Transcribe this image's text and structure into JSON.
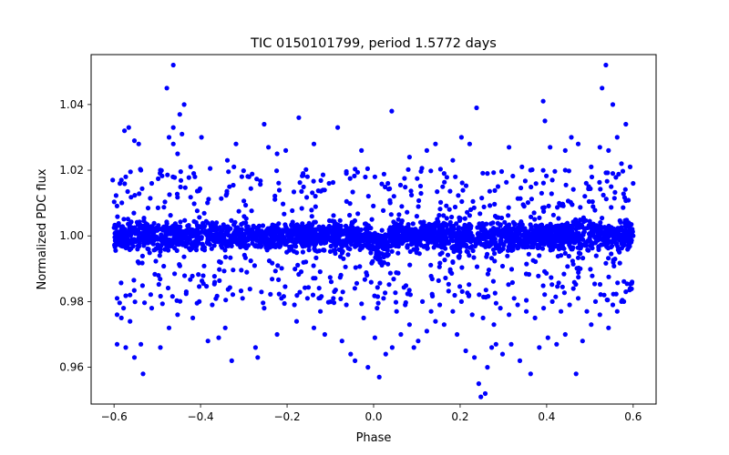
{
  "chart_data": {
    "type": "scatter",
    "title": "TIC 0150101799, period 1.5772 days",
    "xlabel": "Phase",
    "ylabel": "Normalized PDC flux",
    "xlim": [
      -0.653,
      0.653
    ],
    "ylim": [
      0.9488,
      1.0552
    ],
    "xticks": [
      -0.6,
      -0.4,
      -0.2,
      0.0,
      0.2,
      0.4,
      0.6
    ],
    "xtick_labels": [
      "−0.6",
      "−0.4",
      "−0.2",
      "0.0",
      "0.2",
      "0.4",
      "0.6"
    ],
    "yticks": [
      0.96,
      0.98,
      1.0,
      1.02,
      1.04
    ],
    "ytick_labels": [
      "0.96",
      "0.98",
      "1.00",
      "1.02",
      "1.04"
    ],
    "grid": false,
    "marker_color": "#0000ff",
    "series": [
      {
        "name": "PDC flux",
        "points": [
          [
            -0.463,
            1.052
          ],
          [
            0.537,
            1.052
          ],
          [
            -0.478,
            1.045
          ],
          [
            0.528,
            1.045
          ],
          [
            -0.438,
            1.04
          ],
          [
            0.392,
            1.041
          ],
          [
            0.553,
            1.04
          ],
          [
            -0.448,
            1.037
          ],
          [
            0.042,
            1.038
          ],
          [
            0.238,
            1.039
          ],
          [
            -0.576,
            1.032
          ],
          [
            -0.566,
            1.033
          ],
          [
            -0.463,
            1.033
          ],
          [
            -0.253,
            1.034
          ],
          [
            -0.173,
            1.036
          ],
          [
            -0.443,
            1.031
          ],
          [
            0.563,
            1.03
          ],
          [
            0.396,
            1.035
          ],
          [
            -0.553,
            1.029
          ],
          [
            -0.543,
            1.028
          ],
          [
            -0.473,
            1.03
          ],
          [
            -0.398,
            1.03
          ],
          [
            -0.083,
            1.033
          ],
          [
            0.457,
            1.03
          ],
          [
            0.473,
            1.028
          ],
          [
            0.583,
            1.034
          ],
          [
            -0.318,
            1.028
          ],
          [
            -0.243,
            1.027
          ],
          [
            -0.138,
            1.028
          ],
          [
            0.123,
            1.026
          ],
          [
            0.203,
            1.03
          ],
          [
            0.523,
            1.027
          ],
          [
            -0.453,
            1.025
          ],
          [
            -0.463,
            1.028
          ],
          [
            0.408,
            1.027
          ],
          [
            0.543,
            1.026
          ],
          [
            -0.538,
            1.02
          ],
          [
            -0.493,
            1.02
          ],
          [
            -0.423,
            1.021
          ],
          [
            -0.338,
            1.023
          ],
          [
            -0.223,
            1.025
          ],
          [
            -0.203,
            1.026
          ],
          [
            -0.028,
            1.026
          ],
          [
            0.143,
            1.028
          ],
          [
            0.222,
            1.028
          ],
          [
            0.313,
            1.027
          ],
          [
            0.443,
            1.026
          ],
          [
            0.573,
            1.022
          ],
          [
            0.503,
            1.021
          ],
          [
            0.553,
            1.019
          ],
          [
            0.083,
            1.024
          ],
          [
            -0.163,
            1.019
          ],
          [
            -0.323,
            1.021
          ],
          [
            -0.573,
            1.018
          ],
          [
            -0.583,
            1.017
          ],
          [
            0.363,
            1.02
          ],
          [
            0.443,
            1.02
          ],
          [
            0.593,
            1.021
          ],
          [
            -0.063,
            1.019
          ],
          [
            0.003,
            1.018
          ],
          [
            -0.603,
            1.017
          ],
          [
            0.6,
            1.016
          ],
          [
            0.343,
            1.021
          ],
          [
            0.183,
            1.023
          ],
          [
            0.163,
            1.019
          ],
          [
            -0.288,
            1.018
          ],
          [
            -0.413,
            1.018
          ],
          [
            -0.513,
            1.016
          ],
          [
            0.263,
            1.019
          ],
          [
            0.033,
            1.016
          ],
          [
            -0.103,
            1.016
          ],
          [
            0.413,
            1.017
          ],
          [
            -0.593,
            0.976
          ],
          [
            -0.583,
            0.975
          ],
          [
            -0.578,
            0.978
          ],
          [
            -0.563,
            0.974
          ],
          [
            -0.593,
            0.967
          ],
          [
            -0.573,
            0.966
          ],
          [
            -0.553,
            0.963
          ],
          [
            -0.538,
            0.967
          ],
          [
            -0.533,
            0.958
          ],
          [
            -0.493,
            0.966
          ],
          [
            -0.473,
            0.972
          ],
          [
            -0.453,
            0.976
          ],
          [
            -0.418,
            0.975
          ],
          [
            -0.383,
            0.968
          ],
          [
            -0.358,
            0.969
          ],
          [
            -0.343,
            0.972
          ],
          [
            -0.328,
            0.962
          ],
          [
            -0.273,
            0.966
          ],
          [
            -0.268,
            0.963
          ],
          [
            -0.223,
            0.97
          ],
          [
            -0.178,
            0.974
          ],
          [
            -0.138,
            0.972
          ],
          [
            -0.113,
            0.97
          ],
          [
            -0.073,
            0.968
          ],
          [
            -0.053,
            0.964
          ],
          [
            -0.043,
            0.962
          ],
          [
            -0.013,
            0.96
          ],
          [
            0.013,
            0.957
          ],
          [
            0.003,
            0.969
          ],
          [
            0.028,
            0.964
          ],
          [
            0.043,
            0.966
          ],
          [
            0.063,
            0.97
          ],
          [
            0.083,
            0.973
          ],
          [
            0.093,
            0.966
          ],
          [
            0.103,
            0.968
          ],
          [
            0.123,
            0.971
          ],
          [
            0.143,
            0.974
          ],
          [
            0.163,
            0.973
          ],
          [
            0.193,
            0.97
          ],
          [
            0.213,
            0.965
          ],
          [
            0.233,
            0.963
          ],
          [
            0.243,
            0.955
          ],
          [
            0.248,
            0.951
          ],
          [
            0.258,
            0.952
          ],
          [
            0.263,
            0.96
          ],
          [
            0.273,
            0.966
          ],
          [
            0.283,
            0.967
          ],
          [
            0.298,
            0.964
          ],
          [
            0.318,
            0.967
          ],
          [
            0.338,
            0.962
          ],
          [
            0.363,
            0.958
          ],
          [
            0.383,
            0.966
          ],
          [
            0.403,
            0.969
          ],
          [
            0.423,
            0.967
          ],
          [
            0.443,
            0.97
          ],
          [
            0.468,
            0.958
          ],
          [
            0.483,
            0.968
          ],
          [
            0.503,
            0.973
          ],
          [
            0.523,
            0.976
          ],
          [
            0.543,
            0.972
          ],
          [
            0.563,
            0.977
          ],
          [
            0.573,
            0.98
          ],
          [
            0.583,
            0.983
          ],
          [
            0.593,
            0.984
          ],
          [
            -0.593,
            0.981
          ],
          [
            -0.563,
            0.982
          ],
          [
            -0.513,
            0.978
          ],
          [
            -0.433,
            0.983
          ],
          [
            -0.403,
            0.98
          ],
          [
            -0.373,
            0.979
          ],
          [
            -0.303,
            0.981
          ],
          [
            -0.253,
            0.978
          ],
          [
            -0.213,
            0.981
          ],
          [
            -0.183,
            0.979
          ],
          [
            -0.153,
            0.981
          ],
          [
            -0.123,
            0.977
          ],
          [
            -0.093,
            0.981
          ],
          [
            -0.063,
            0.979
          ],
          [
            -0.023,
            0.975
          ],
          [
            0.008,
            0.978
          ],
          [
            0.023,
            0.981
          ],
          [
            0.053,
            0.977
          ],
          [
            0.073,
            0.979
          ],
          [
            0.113,
            0.98
          ],
          [
            0.133,
            0.977
          ],
          [
            0.153,
            0.979
          ],
          [
            0.183,
            0.977
          ],
          [
            0.203,
            0.98
          ],
          [
            0.228,
            0.976
          ],
          [
            0.253,
            0.975
          ],
          [
            0.278,
            0.973
          ],
          [
            0.293,
            0.978
          ],
          [
            0.313,
            0.976
          ],
          [
            0.333,
            0.979
          ],
          [
            0.353,
            0.977
          ],
          [
            0.373,
            0.975
          ],
          [
            0.393,
            0.978
          ],
          [
            0.413,
            0.98
          ],
          [
            0.433,
            0.977
          ],
          [
            0.453,
            0.979
          ],
          [
            0.473,
            0.981
          ],
          [
            0.493,
            0.977
          ],
          [
            0.513,
            0.98
          ],
          [
            0.533,
            0.982
          ],
          [
            0.553,
            0.979
          ]
        ]
      }
    ],
    "dense_band": {
      "x_range": [
        -0.6,
        0.6
      ],
      "y_center": 1.0,
      "y_halfwidth": 0.0095,
      "halo_halfwidth": 0.015,
      "transit_phase": 0.015,
      "transit_depth": 0.005
    }
  }
}
